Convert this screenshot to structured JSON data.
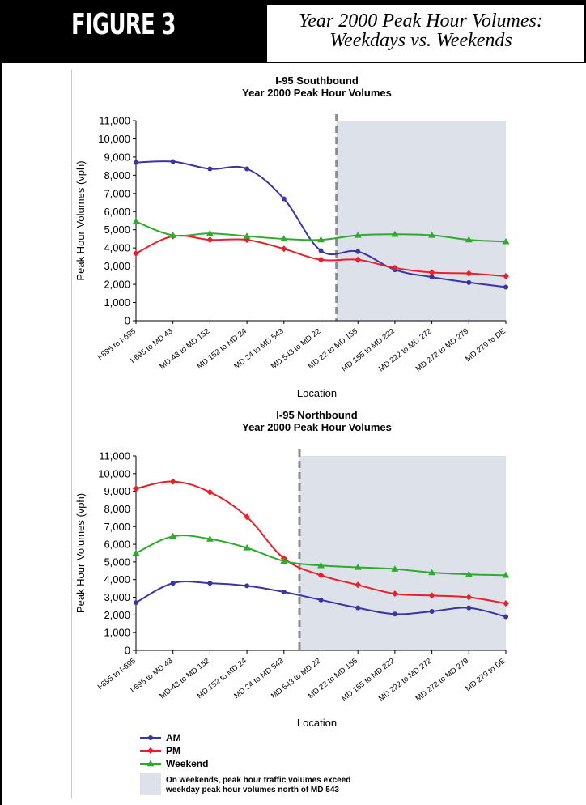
{
  "figure": {
    "label": "FIGURE 3",
    "title_line1": "Year 2000 Peak Hour Volumes:",
    "title_line2": "Weekdays vs. Weekends"
  },
  "colors": {
    "am": "#3a35a0",
    "pm": "#e8202a",
    "weekend": "#2eaa2e",
    "shade": "#dde2ea",
    "divider": "#8c8c8c"
  },
  "legend": {
    "items": [
      {
        "key": "am",
        "label": "AM"
      },
      {
        "key": "pm",
        "label": "PM"
      },
      {
        "key": "weekend",
        "label": "Weekend"
      }
    ],
    "note_line1": "On weekends, peak hour traffic volumes exceed",
    "note_line2": "weekday peak hour volumes north of MD 543"
  },
  "chart_data": [
    {
      "type": "line",
      "title": "I-95 Southbound",
      "subtitle": "Year 2000 Peak Hour Volumes",
      "xlabel": "Location",
      "ylabel": "Peak Hour Volumes (vph)",
      "ylim": [
        0,
        11000
      ],
      "yticks": [
        "0",
        "1,000",
        "2,000",
        "3,000",
        "4,000",
        "5,000",
        "6,000",
        "7,000",
        "8,000",
        "9,000",
        "10,000",
        "11,000"
      ],
      "categories": [
        "I-895 to I-695",
        "I-695 to MD 43",
        "MD-43 to MD 152",
        "MD 152 to MD 24",
        "MD 24 to MD 543",
        "MD 543 to MD 22",
        "MD 22 to MD 155",
        "MD 155 to MD 222",
        "MD 222 to MD 272",
        "MD 272 to MD 279",
        "MD 279 to DE"
      ],
      "shaded_from_index": 5,
      "series": [
        {
          "name": "AM",
          "key": "am",
          "marker": "circle",
          "values": [
            8700,
            8750,
            8350,
            8350,
            6700,
            3850,
            3800,
            2800,
            2400,
            2100,
            1850
          ]
        },
        {
          "name": "PM",
          "key": "pm",
          "marker": "diamond",
          "values": [
            3700,
            4650,
            4450,
            4450,
            3950,
            3350,
            3350,
            2900,
            2650,
            2600,
            2450
          ]
        },
        {
          "name": "Weekend",
          "key": "weekend",
          "marker": "triangle",
          "values": [
            5450,
            4700,
            4800,
            4650,
            4500,
            4450,
            4700,
            4750,
            4700,
            4450,
            4350
          ]
        }
      ]
    },
    {
      "type": "line",
      "title": "I-95 Northbound",
      "subtitle": "Year 2000 Peak Hour Volumes",
      "xlabel": "Location",
      "ylabel": "Peak Hour Volumes (vph)",
      "ylim": [
        0,
        11000
      ],
      "yticks": [
        "0",
        "1,000",
        "2,000",
        "3,000",
        "4,000",
        "5,000",
        "6,000",
        "7,000",
        "8,000",
        "9,000",
        "10,000",
        "11,000"
      ],
      "categories": [
        "I-895 to I-695",
        "I-695 to MD 43",
        "MD-43 to MD 152",
        "MD 152 to MD 24",
        "MD 24 to MD 543",
        "MD 543 to MD 22",
        "MD 22 to MD 155",
        "MD 155 to MD 222",
        "MD 222 to MD 272",
        "MD 272 to MD 279",
        "MD 279 to DE"
      ],
      "shaded_from_index": 4,
      "series": [
        {
          "name": "AM",
          "key": "am",
          "marker": "circle",
          "values": [
            2700,
            3800,
            3800,
            3650,
            3300,
            2850,
            2400,
            2050,
            2200,
            2400,
            1900
          ]
        },
        {
          "name": "PM",
          "key": "pm",
          "marker": "diamond",
          "values": [
            9150,
            9550,
            8950,
            7550,
            5200,
            4250,
            3700,
            3200,
            3100,
            3000,
            2650
          ]
        },
        {
          "name": "Weekend",
          "key": "weekend",
          "marker": "triangle",
          "values": [
            5500,
            6450,
            6300,
            5800,
            5050,
            4800,
            4700,
            4600,
            4400,
            4300,
            4250
          ]
        }
      ]
    }
  ]
}
